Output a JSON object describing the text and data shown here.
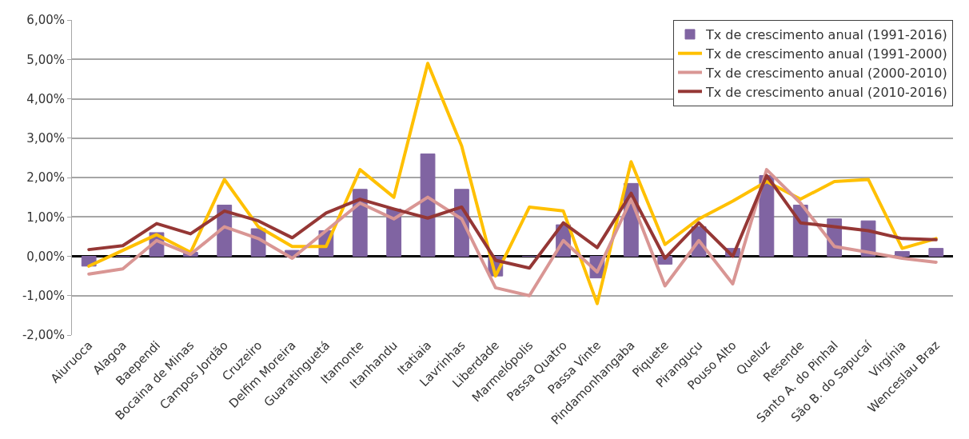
{
  "chart_data": {
    "type": "bar",
    "categories": [
      "Aiuruoca",
      "Alagoa",
      "Baependi",
      "Bocaina de Minas",
      "Campos Jordão",
      "Cruzeiro",
      "Delfim Moreira",
      "Guaratinguetá",
      "Itamonte",
      "Itanhandu",
      "Itatiaia",
      "Lavrinhas",
      "Liberdade",
      "Marmelópolis",
      "Passa Quatro",
      "Passa Vinte",
      "Pindamonhangaba",
      "Piquete",
      "Piranguçu",
      "Pouso Alto",
      "Queluz",
      "Resende",
      "Santo A. do Pinhal",
      "São B. do Sapucaí",
      "Virgínia",
      "Wenceslau Braz"
    ],
    "series": [
      {
        "name": "Tx de crescimento anual (1991-2016)",
        "color": "#8064a2",
        "values": [
          -0.25,
          0,
          0.6,
          0.1,
          1.3,
          0.7,
          0.15,
          0.65,
          1.7,
          1.2,
          2.6,
          1.7,
          -0.5,
          0,
          0.8,
          -0.55,
          1.85,
          -0.2,
          0.75,
          0.2,
          2.05,
          1.3,
          0.95,
          0.9,
          0.12,
          0.2
        ]
      },
      {
        "name": "Tx de crescimento anual (1991-2000)",
        "type": "line",
        "color": "#ffc000",
        "values": [
          -0.25,
          0.15,
          0.55,
          0.1,
          1.95,
          0.75,
          0.25,
          0.25,
          2.2,
          1.5,
          4.9,
          2.8,
          -0.5,
          1.25,
          1.15,
          -1.2,
          2.4,
          0.3,
          0.95,
          1.4,
          1.9,
          1.45,
          1.9,
          1.95,
          0.2,
          0.45
        ]
      },
      {
        "name": "Tx de crescimento anual (2000-2010)",
        "type": "line",
        "color": "#d99694",
        "values": [
          -0.45,
          -0.32,
          0.4,
          0.05,
          0.75,
          0.45,
          -0.05,
          0.65,
          1.35,
          0.95,
          1.5,
          0.95,
          -0.8,
          -1.0,
          0.4,
          -0.4,
          1.45,
          -0.75,
          0.4,
          -0.7,
          2.2,
          1.35,
          0.25,
          0.1,
          -0.05,
          -0.15
        ]
      },
      {
        "name": "Tx de crescimento anual (2010-2016)",
        "type": "line",
        "color": "#953735",
        "values": [
          0.17,
          0.27,
          0.83,
          0.57,
          1.15,
          0.9,
          0.47,
          1.1,
          1.45,
          1.2,
          0.97,
          1.25,
          -0.1,
          -0.3,
          0.85,
          0.22,
          1.6,
          -0.05,
          0.85,
          0.0,
          2.05,
          0.85,
          0.75,
          0.65,
          0.45,
          0.42
        ]
      }
    ],
    "ylim": [
      -2,
      6
    ],
    "yticks": [
      {
        "value": -2,
        "label": "-2,00%"
      },
      {
        "value": -1,
        "label": "-1,00%"
      },
      {
        "value": 0,
        "label": "0,00%"
      },
      {
        "value": 1,
        "label": "1,00%"
      },
      {
        "value": 2,
        "label": "2,00%"
      },
      {
        "value": 3,
        "label": "3,00%"
      },
      {
        "value": 4,
        "label": "4,00%"
      },
      {
        "value": 5,
        "label": "5,00%"
      },
      {
        "value": 6,
        "label": "6,00%"
      }
    ],
    "grid": "y",
    "legend": "top right",
    "marker": "none",
    "line_style": "solid"
  }
}
